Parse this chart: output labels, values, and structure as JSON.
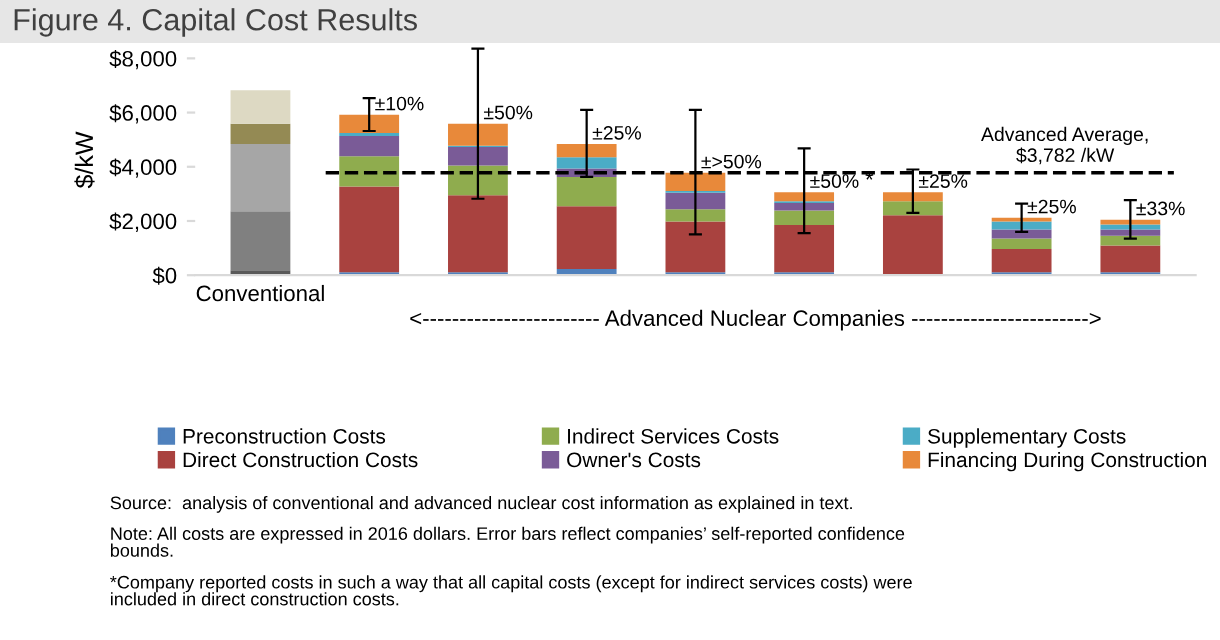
{
  "chart_data": {
    "type": "bar",
    "stacked": true,
    "title": "Figure 4. Capital Cost Results",
    "ylabel": "$/kW",
    "xlabel": "<------------------------ Advanced Nuclear Companies ------------------------>",
    "categories": [
      "Conventional",
      null,
      null,
      null,
      null,
      null,
      null,
      null,
      null
    ],
    "series": [
      {
        "name": "Preconstruction Costs",
        "color": "#4f81bd",
        "colors": [
          "#5a5a5a",
          "#4f81bd",
          "#4f81bd",
          "#4f81bd",
          "#4f81bd",
          "#4f81bd",
          "#4f81bd",
          "#4f81bd",
          "#4f81bd"
        ],
        "values": [
          180,
          110,
          110,
          225,
          110,
          110,
          0,
          110,
          110
        ]
      },
      {
        "name": "Direct Construction Costs",
        "color": "#a9423f",
        "colors": [
          "#808080",
          "#a9423f",
          "#a9423f",
          "#a9423f",
          "#a9423f",
          "#a9423f",
          "#a9423f",
          "#a9423f",
          "#a9423f"
        ],
        "values": [
          2180,
          3160,
          2840,
          2320,
          1870,
          1740,
          2210,
          860,
          990
        ]
      },
      {
        "name": "Indirect Services Costs",
        "color": "#8fac4e",
        "colors": [
          "#a6a6a6",
          "#8fac4e",
          "#8fac4e",
          "#8fac4e",
          "#8fac4e",
          "#8fac4e",
          "#8fac4e",
          "#8fac4e",
          "#8fac4e"
        ],
        "values": [
          2480,
          1120,
          1100,
          1080,
          450,
          540,
          515,
          380,
          360
        ]
      },
      {
        "name": "Owner's Costs",
        "color": "#7a5b97",
        "colors": [
          "#948a54",
          "#7a5b97",
          "#7a5b97",
          "#7a5b97",
          "#7a5b97",
          "#7a5b97",
          "#7a5b97",
          "#7a5b97",
          "#7a5b97"
        ],
        "values": [
          750,
          750,
          680,
          315,
          610,
          270,
          0,
          340,
          230
        ]
      },
      {
        "name": "Supplementary Costs",
        "color": "#4bacc6",
        "colors": [
          "#948a54",
          "#4bacc6",
          "#4bacc6",
          "#4bacc6",
          "#4bacc6",
          "#4bacc6",
          "#4bacc6",
          "#4bacc6",
          "#4bacc6"
        ],
        "values": [
          0,
          110,
          45,
          410,
          70,
          65,
          0,
          290,
          180
        ]
      },
      {
        "name": "Financing During Construction",
        "color": "#e8893a",
        "colors": [
          "#ddd9c3",
          "#e8893a",
          "#e8893a",
          "#e8893a",
          "#e8893a",
          "#e8893a",
          "#e8893a",
          "#e8893a",
          "#e8893a"
        ],
        "values": [
          1230,
          670,
          815,
          490,
          670,
          335,
          335,
          140,
          180
        ],
        "errors": [
          null,
          [
            5320,
            6530
          ],
          [
            2820,
            8360
          ],
          [
            3630,
            6100
          ],
          [
            1510,
            6100
          ],
          [
            1550,
            4680
          ],
          [
            2300,
            3900
          ],
          [
            1600,
            2640
          ],
          [
            1350,
            2770
          ]
        ]
      }
    ],
    "ylim": [
      0,
      8500
    ],
    "yticks": [
      {
        "value": 0,
        "label": "$0"
      },
      {
        "value": 2000,
        "label": "$2,000"
      },
      {
        "value": 4000,
        "label": "$4,000"
      },
      {
        "value": 6000,
        "label": "$6,000"
      },
      {
        "value": 8000,
        "label": "$8,000"
      }
    ],
    "ref_lines": [
      {
        "axis": "y",
        "value": 3782,
        "label": "Advanced Average,\n$3,782 /kW",
        "line_style": "dashed",
        "color": "#000000"
      }
    ],
    "grid": false,
    "legend": "bottom",
    "annotations": [
      "±10%",
      "±50%",
      "±25%",
      "±>50%",
      "±50%",
      "±25%",
      "±25%",
      "±33%",
      "*",
      "Source:  analysis of conventional and advanced nuclear cost information as explained in text.",
      "Note: All costs are expressed in 2016 dollars. Error bars reflect companies’ self-reported confidence\nbounds.",
      "*Company reported costs in such a way that all capital costs (except for indirect services costs) were\nincluded in direct construction costs."
    ]
  }
}
